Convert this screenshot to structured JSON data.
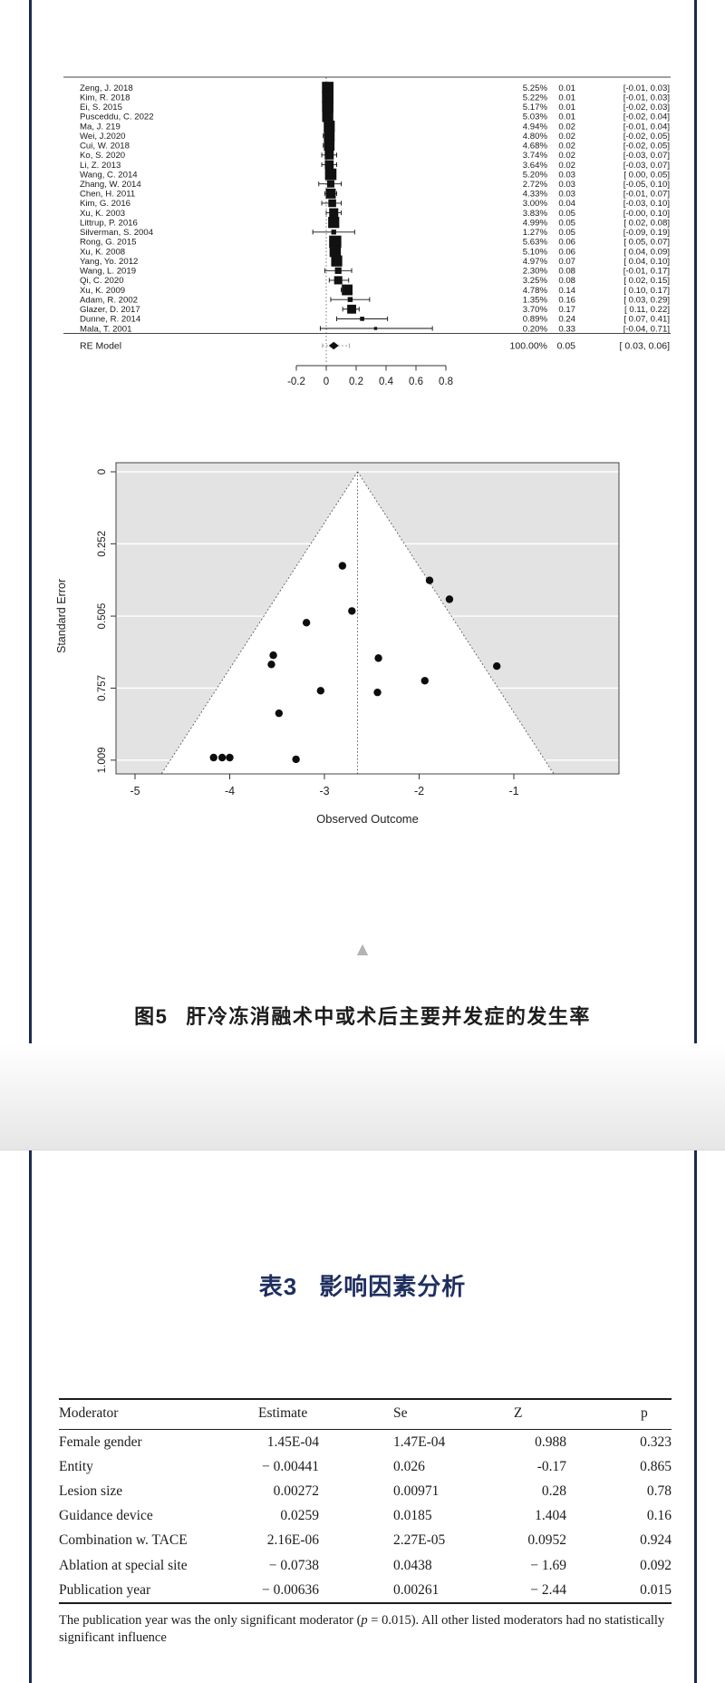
{
  "colors": {
    "navy_accent": "#1f2f5f",
    "navy_border": "#1b2a52",
    "funnel_gray": "#e3e3e3",
    "triangle_gray": "#b3b3b3",
    "text_dark": "#1a1a1a"
  },
  "icons": {
    "scroll_up_triangle": "▲"
  },
  "figure": {
    "number_label": "图5",
    "caption": "肝冷冻消融术中或术后主要并发症的发生率"
  },
  "table_section": {
    "number_label": "表3",
    "title": "影响因素分析"
  },
  "chart_data": [
    {
      "type": "forest",
      "zero_line": 0,
      "x_ticks": [
        {
          "v": -0.2,
          "s": "-0.2"
        },
        {
          "v": 0,
          "s": "0"
        },
        {
          "v": 0.2,
          "s": "0.2"
        },
        {
          "v": 0.4,
          "s": "0.4"
        },
        {
          "v": 0.6,
          "s": "0.6"
        },
        {
          "v": 0.8,
          "s": "0.8"
        }
      ],
      "studies": [
        {
          "label": "Zeng, J. 2018",
          "w": 5.25,
          "w_s": "5.25%",
          "est": 0.01,
          "est_s": "0.01",
          "lo": -0.01,
          "hi": 0.03,
          "ci_s": "[-0.01, 0.03]"
        },
        {
          "label": "Kim, R. 2018",
          "w": 5.22,
          "w_s": "5.22%",
          "est": 0.01,
          "est_s": "0.01",
          "lo": -0.01,
          "hi": 0.03,
          "ci_s": "[-0.01, 0.03]"
        },
        {
          "label": "Ei, S. 2015",
          "w": 5.17,
          "w_s": "5.17%",
          "est": 0.01,
          "est_s": "0.01",
          "lo": -0.02,
          "hi": 0.03,
          "ci_s": "[-0.02, 0.03]"
        },
        {
          "label": "Pusceddu, C. 2022",
          "w": 5.03,
          "w_s": "5.03%",
          "est": 0.01,
          "est_s": "0.01",
          "lo": -0.02,
          "hi": 0.04,
          "ci_s": "[-0.02, 0.04]"
        },
        {
          "label": "Ma, J. 219",
          "w": 4.94,
          "w_s": "4.94%",
          "est": 0.02,
          "est_s": "0.02",
          "lo": -0.01,
          "hi": 0.04,
          "ci_s": "[-0.01, 0.04]"
        },
        {
          "label": "Wei, J.2020",
          "w": 4.8,
          "w_s": "4.80%",
          "est": 0.02,
          "est_s": "0.02",
          "lo": -0.02,
          "hi": 0.05,
          "ci_s": "[-0.02, 0.05]"
        },
        {
          "label": "Cui, W. 2018",
          "w": 4.68,
          "w_s": "4.68%",
          "est": 0.02,
          "est_s": "0.02",
          "lo": -0.02,
          "hi": 0.05,
          "ci_s": "[-0.02, 0.05]"
        },
        {
          "label": "Ko, S. 2020",
          "w": 3.74,
          "w_s": "3.74%",
          "est": 0.02,
          "est_s": "0.02",
          "lo": -0.03,
          "hi": 0.07,
          "ci_s": "[-0.03, 0.07]"
        },
        {
          "label": "Li, Z. 2013",
          "w": 3.64,
          "w_s": "3.64%",
          "est": 0.02,
          "est_s": "0.02",
          "lo": -0.03,
          "hi": 0.07,
          "ci_s": "[-0.03, 0.07]"
        },
        {
          "label": "Wang, C. 2014",
          "w": 5.2,
          "w_s": "5.20%",
          "est": 0.03,
          "est_s": "0.03",
          "lo": 0.0,
          "hi": 0.05,
          "ci_s": "[ 0.00, 0.05]"
        },
        {
          "label": "Zhang, W. 2014",
          "w": 2.72,
          "w_s": "2.72%",
          "est": 0.03,
          "est_s": "0.03",
          "lo": -0.05,
          "hi": 0.1,
          "ci_s": "[-0.05, 0.10]"
        },
        {
          "label": "Chen, H. 2011",
          "w": 4.33,
          "w_s": "4.33%",
          "est": 0.03,
          "est_s": "0.03",
          "lo": -0.01,
          "hi": 0.07,
          "ci_s": "[-0.01, 0.07]"
        },
        {
          "label": "Kim, G. 2016",
          "w": 3.0,
          "w_s": "3.00%",
          "est": 0.04,
          "est_s": "0.04",
          "lo": -0.03,
          "hi": 0.1,
          "ci_s": "[-0.03, 0.10]"
        },
        {
          "label": "Xu, K. 2003",
          "w": 3.83,
          "w_s": "3.83%",
          "est": 0.05,
          "est_s": "0.05",
          "lo": -0.0,
          "hi": 0.1,
          "ci_s": "[-0.00, 0.10]"
        },
        {
          "label": "Littrup, P. 2016",
          "w": 4.99,
          "w_s": "4.99%",
          "est": 0.05,
          "est_s": "0.05",
          "lo": 0.02,
          "hi": 0.08,
          "ci_s": "[ 0.02, 0.08]"
        },
        {
          "label": "Silverman, S. 2004",
          "w": 1.27,
          "w_s": "1.27%",
          "est": 0.05,
          "est_s": "0.05",
          "lo": -0.09,
          "hi": 0.19,
          "ci_s": "[-0.09, 0.19]"
        },
        {
          "label": "Rong, G. 2015",
          "w": 5.63,
          "w_s": "5.63%",
          "est": 0.06,
          "est_s": "0.06",
          "lo": 0.05,
          "hi": 0.07,
          "ci_s": "[ 0.05, 0.07]"
        },
        {
          "label": "Xu, K. 2008",
          "w": 5.1,
          "w_s": "5.10%",
          "est": 0.06,
          "est_s": "0.06",
          "lo": 0.04,
          "hi": 0.09,
          "ci_s": "[ 0.04, 0.09]"
        },
        {
          "label": "Yang, Yo. 2012",
          "w": 4.97,
          "w_s": "4.97%",
          "est": 0.07,
          "est_s": "0.07",
          "lo": 0.04,
          "hi": 0.1,
          "ci_s": "[ 0.04, 0.10]"
        },
        {
          "label": "Wang, L. 2019",
          "w": 2.3,
          "w_s": "2.30%",
          "est": 0.08,
          "est_s": "0.08",
          "lo": -0.01,
          "hi": 0.17,
          "ci_s": "[-0.01, 0.17]"
        },
        {
          "label": "Qi, C. 2020",
          "w": 3.25,
          "w_s": "3.25%",
          "est": 0.08,
          "est_s": "0.08",
          "lo": 0.02,
          "hi": 0.15,
          "ci_s": "[ 0.02, 0.15]"
        },
        {
          "label": "Xu, K. 2009",
          "w": 4.78,
          "w_s": "4.78%",
          "est": 0.14,
          "est_s": "0.14",
          "lo": 0.1,
          "hi": 0.17,
          "ci_s": "[ 0.10, 0.17]"
        },
        {
          "label": "Adam, R. 2002",
          "w": 1.35,
          "w_s": "1.35%",
          "est": 0.16,
          "est_s": "0.16",
          "lo": 0.03,
          "hi": 0.29,
          "ci_s": "[ 0.03, 0.29]"
        },
        {
          "label": "Glazer, D. 2017",
          "w": 3.7,
          "w_s": "3.70%",
          "est": 0.17,
          "est_s": "0.17",
          "lo": 0.11,
          "hi": 0.22,
          "ci_s": "[ 0.11, 0.22]"
        },
        {
          "label": "Dunne, R. 2014",
          "w": 0.89,
          "w_s": "0.89%",
          "est": 0.24,
          "est_s": "0.24",
          "lo": 0.07,
          "hi": 0.41,
          "ci_s": "[ 0.07, 0.41]"
        },
        {
          "label": "Mala, T. 2001",
          "w": 0.2,
          "w_s": "0.20%",
          "est": 0.33,
          "est_s": "0.33",
          "lo": -0.04,
          "hi": 0.71,
          "ci_s": "[-0.04, 0.71]"
        }
      ],
      "re_model": {
        "label": "RE Model",
        "w_s": "100.00%",
        "est": 0.05,
        "est_s": "0.05",
        "lo": 0.03,
        "hi": 0.06,
        "ci_s": "[ 0.03, 0.06]",
        "pi_lo": -0.025,
        "pi_hi": 0.155
      }
    },
    {
      "type": "scatter",
      "subtype": "funnel",
      "xlabel": "Observed Outcome",
      "ylabel": "Standard Error",
      "x_ticks": [
        {
          "v": -5,
          "s": "-5"
        },
        {
          "v": -4,
          "s": "-4"
        },
        {
          "v": -3,
          "s": "-3"
        },
        {
          "v": -2,
          "s": "-2"
        },
        {
          "v": -1,
          "s": "-1"
        }
      ],
      "y_ticks": [
        {
          "v": 0,
          "s": "0"
        },
        {
          "v": 0.252,
          "s": "0.252"
        },
        {
          "v": 0.505,
          "s": "0.505"
        },
        {
          "v": 0.757,
          "s": "0.757"
        },
        {
          "v": 1.009,
          "s": "1.009"
        }
      ],
      "apex_x": -2.65,
      "ci_slope": 1.96,
      "points": [
        [
          -2.81,
          0.329
        ],
        [
          -1.89,
          0.38
        ],
        [
          -1.68,
          0.446
        ],
        [
          -2.71,
          0.487
        ],
        [
          -3.19,
          0.528
        ],
        [
          -3.54,
          0.642
        ],
        [
          -3.56,
          0.674
        ],
        [
          -2.43,
          0.652
        ],
        [
          -1.18,
          0.68
        ],
        [
          -1.94,
          0.731
        ],
        [
          -3.04,
          0.766
        ],
        [
          -2.44,
          0.772
        ],
        [
          -3.48,
          0.845
        ],
        [
          -4.17,
          1.0
        ],
        [
          -4.08,
          1.0
        ],
        [
          -4.0,
          1.0
        ],
        [
          -3.3,
          1.006
        ]
      ]
    }
  ],
  "table": {
    "headers": [
      "Moderator",
      "Estimate",
      "Se",
      "Z",
      "p"
    ],
    "rows": [
      [
        "Female gender",
        "1.45E-04",
        "1.47E-04",
        "0.988",
        "0.323"
      ],
      [
        "Entity",
        "− 0.00441",
        "0.026",
        "-0.17",
        "0.865"
      ],
      [
        "Lesion size",
        "0.00272",
        "0.00971",
        "0.28",
        "0.78"
      ],
      [
        "Guidance device",
        "0.0259",
        "0.0185",
        "1.404",
        "0.16"
      ],
      [
        "Combination w. TACE",
        "2.16E-06",
        "2.27E-05",
        "0.0952",
        "0.924"
      ],
      [
        "Ablation at special site",
        "− 0.0738",
        "0.0438",
        "− 1.69",
        "0.092"
      ],
      [
        "Publication year",
        "− 0.00636",
        "0.00261",
        "− 2.44",
        "0.015"
      ]
    ],
    "footnote_parts": [
      "The publication year was the only significant moderator (",
      "p",
      " = 0.015). All other listed moderators had no statistically significant influence"
    ]
  }
}
